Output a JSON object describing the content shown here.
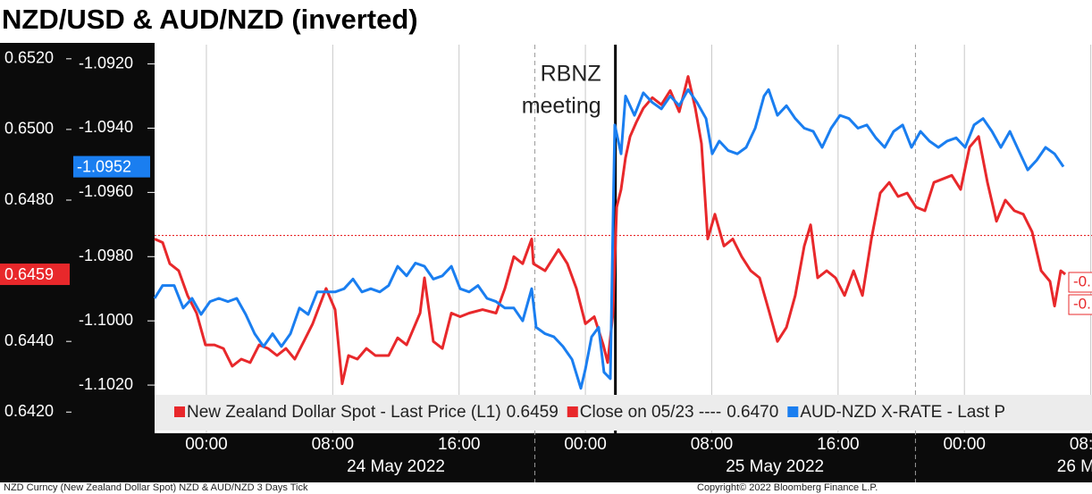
{
  "chart_data": {
    "type": "line",
    "title": "NZD/USD & AUD/NZD (inverted)",
    "xlim": [
      -3.28,
      56.08
    ],
    "xticks": [
      {
        "value": 0,
        "label": "00:00"
      },
      {
        "value": 8,
        "label": "08:00"
      },
      {
        "value": 16,
        "label": "16:00"
      },
      {
        "value": 24,
        "label": "00:00"
      },
      {
        "value": 32,
        "label": "08:00"
      },
      {
        "value": 40,
        "label": "16:00"
      },
      {
        "value": 48,
        "label": "00:00"
      },
      {
        "value": 56,
        "label": "08:00"
      }
    ],
    "date_labels": [
      {
        "value": 12,
        "label": "24 May 2022"
      },
      {
        "value": 36,
        "label": "25 May 2022"
      },
      {
        "value": 60,
        "label": "26 M"
      }
    ],
    "session_breaks": [
      20.8,
      44.9
    ],
    "grid": true,
    "ylim": [
      0.6414,
      0.6524
    ],
    "yticks": [
      {
        "value": 0.652,
        "label": "0.6520"
      },
      {
        "value": 0.65,
        "label": "0.6500"
      },
      {
        "value": 0.648,
        "label": "0.6480"
      },
      {
        "value": 0.644,
        "label": "0.6440"
      },
      {
        "value": 0.642,
        "label": "0.6420"
      }
    ],
    "y2lim": [
      -1.1035,
      -1.0914
    ],
    "y2ticks": [
      {
        "value": -1.092,
        "label": "-1.0920"
      },
      {
        "value": -1.094,
        "label": "-1.0940"
      },
      {
        "value": -1.096,
        "label": "-1.0960"
      },
      {
        "value": -1.098,
        "label": "-1.0980"
      },
      {
        "value": -1.1,
        "label": "-1.1000"
      },
      {
        "value": -1.102,
        "label": "-1.1020"
      }
    ],
    "series": [
      {
        "name": "New Zealand Dollar Spot - Last Price (L1)",
        "color": "#e8282b",
        "x": [
          -3.28,
          -2.77,
          -2.32,
          -1.75,
          -1.19,
          -0.62,
          -0.06,
          0.51,
          1.08,
          1.64,
          2.21,
          2.77,
          3.34,
          3.9,
          4.47,
          5.04,
          5.6,
          6.17,
          6.73,
          7.58,
          8.15,
          8.6,
          9.0,
          9.56,
          10.13,
          10.7,
          11.54,
          12.11,
          12.68,
          13.53,
          13.81,
          14.37,
          14.94,
          15.51,
          16.07,
          16.64,
          17.49,
          18.34,
          18.9,
          19.47,
          20.03,
          20.6,
          20.71,
          21.45,
          22.3,
          22.86,
          23.43,
          24.0,
          24.56,
          25.13,
          25.41,
          25.75,
          25.98,
          26.26,
          26.54,
          26.83,
          27.22,
          27.67,
          28.24,
          28.81,
          29.37,
          29.94,
          30.5,
          30.96,
          31.35,
          31.75,
          32.2,
          32.77,
          33.33,
          33.9,
          34.47,
          35.03,
          35.6,
          36.16,
          36.73,
          37.29,
          37.86,
          38.26,
          38.71,
          39.28,
          39.84,
          40.41,
          40.98,
          41.54,
          42.11,
          42.67,
          43.24,
          43.8,
          44.37,
          44.94,
          45.5,
          46.07,
          46.63,
          47.2,
          47.76,
          48.33,
          48.9,
          49.46,
          50.03,
          50.59,
          51.16,
          51.73,
          52.29,
          52.86,
          53.42,
          53.71,
          54.1,
          54.39
        ],
        "values": [
          0.6469,
          0.6468,
          0.6462,
          0.646,
          0.6453,
          0.6448,
          0.6439,
          0.6439,
          0.6438,
          0.6433,
          0.6435,
          0.6434,
          0.6439,
          0.6438,
          0.6436,
          0.6438,
          0.6435,
          0.644,
          0.6445,
          0.6455,
          0.6449,
          0.6428,
          0.6436,
          0.6435,
          0.6438,
          0.6436,
          0.6436,
          0.6441,
          0.6439,
          0.6448,
          0.6458,
          0.644,
          0.6438,
          0.6448,
          0.6447,
          0.6448,
          0.6449,
          0.6448,
          0.6455,
          0.6464,
          0.6462,
          0.6469,
          0.6462,
          0.646,
          0.6466,
          0.6462,
          0.6455,
          0.6445,
          0.6447,
          0.6439,
          0.6434,
          0.6448,
          0.6478,
          0.6483,
          0.6492,
          0.6498,
          0.6502,
          0.6506,
          0.6509,
          0.6507,
          0.6511,
          0.6505,
          0.6515,
          0.6506,
          0.6496,
          0.6469,
          0.6476,
          0.6467,
          0.6469,
          0.6464,
          0.646,
          0.6458,
          0.6449,
          0.644,
          0.6444,
          0.6453,
          0.6467,
          0.6473,
          0.6458,
          0.646,
          0.6458,
          0.6453,
          0.646,
          0.6453,
          0.6469,
          0.6482,
          0.6485,
          0.6481,
          0.6482,
          0.6478,
          0.6477,
          0.6485,
          0.6486,
          0.6487,
          0.6483,
          0.6495,
          0.6498,
          0.6485,
          0.6474,
          0.648,
          0.6477,
          0.6476,
          0.6471,
          0.646,
          0.6457,
          0.645,
          0.646,
          0.6459
        ]
      },
      {
        "name": "AUD-NZD X-RATE - Last P",
        "color": "#1a7ef0",
        "axis": "y2",
        "x": [
          -3.28,
          -2.77,
          -2.04,
          -1.47,
          -0.91,
          -0.34,
          0.23,
          0.79,
          1.36,
          1.92,
          2.49,
          3.06,
          3.62,
          4.19,
          4.75,
          5.32,
          5.89,
          6.45,
          7.02,
          7.58,
          8.15,
          8.72,
          9.28,
          9.85,
          10.41,
          10.98,
          11.54,
          12.11,
          12.68,
          13.24,
          13.81,
          14.37,
          14.94,
          15.51,
          16.07,
          16.64,
          17.2,
          17.77,
          18.34,
          18.9,
          19.47,
          20.03,
          20.6,
          20.88,
          21.45,
          22.01,
          22.58,
          23.15,
          23.71,
          24.0,
          24.39,
          24.84,
          25.18,
          25.58,
          25.75,
          25.86,
          26.26,
          26.54,
          27.11,
          27.67,
          28.24,
          28.81,
          29.37,
          29.94,
          30.5,
          31.07,
          31.64,
          32.03,
          32.48,
          33.05,
          33.62,
          34.18,
          34.75,
          35.31,
          35.6,
          36.16,
          36.73,
          37.29,
          37.86,
          38.43,
          38.99,
          39.56,
          40.12,
          40.69,
          41.26,
          41.82,
          42.39,
          42.95,
          43.52,
          44.09,
          44.65,
          45.22,
          45.78,
          46.35,
          46.91,
          47.48,
          48.05,
          48.61,
          49.18,
          49.75,
          50.31,
          50.88,
          51.44,
          52.01,
          52.58,
          53.14,
          53.71,
          54.27
        ],
        "values": [
          -1.0993,
          -1.0989,
          -1.0989,
          -1.0996,
          -1.0993,
          -1.0998,
          -1.0994,
          -1.0993,
          -1.0994,
          -1.0993,
          -1.0998,
          -1.1004,
          -1.1008,
          -1.1004,
          -1.1008,
          -1.1004,
          -1.0996,
          -1.0998,
          -1.0991,
          -1.0991,
          -1.0991,
          -1.099,
          -1.0987,
          -1.0991,
          -1.099,
          -1.0991,
          -1.0989,
          -1.0983,
          -1.0986,
          -1.0982,
          -1.0983,
          -1.0987,
          -1.0986,
          -1.0983,
          -1.099,
          -1.0991,
          -1.0989,
          -1.0993,
          -1.0994,
          -1.0996,
          -1.0996,
          -1.1,
          -1.099,
          -1.1002,
          -1.1004,
          -1.1005,
          -1.1008,
          -1.1012,
          -1.1021,
          -1.1015,
          -1.1005,
          -1.1002,
          -1.1016,
          -1.1018,
          -1.0969,
          -1.0939,
          -1.0948,
          -1.093,
          -1.0936,
          -1.0929,
          -1.0932,
          -1.0934,
          -1.093,
          -1.0933,
          -1.0928,
          -1.0932,
          -1.0937,
          -1.0948,
          -1.0944,
          -1.0947,
          -1.0948,
          -1.0946,
          -1.094,
          -1.093,
          -1.0928,
          -1.0936,
          -1.0933,
          -1.0937,
          -1.094,
          -1.0941,
          -1.0946,
          -1.094,
          -1.0936,
          -1.0937,
          -1.094,
          -1.0939,
          -1.0943,
          -1.0946,
          -1.0941,
          -1.0939,
          -1.0946,
          -1.0941,
          -1.0944,
          -1.0946,
          -1.0944,
          -1.0943,
          -1.0946,
          -1.0939,
          -1.0937,
          -1.0941,
          -1.0946,
          -1.0941,
          -1.0947,
          -1.0953,
          -1.095,
          -1.0946,
          -1.0948,
          -1.0952
        ]
      }
    ],
    "reference_lines": [
      {
        "name": "Close on 05/23 ----",
        "value": 0.647,
        "label": "0.6470",
        "color": "#e8282b"
      }
    ],
    "annotations": [
      {
        "lines": [
          "RBNZ",
          "meeting"
        ],
        "x": 25.9
      }
    ],
    "edge_labels": [
      "-0.",
      "-0."
    ],
    "footer_left": "NZD Curncy (New Zealand Dollar Spot) NZD & AUD/NZD 3 Days  Tick",
    "footer_right": "Copyright© 2022 Bloomberg Finance L.P."
  }
}
